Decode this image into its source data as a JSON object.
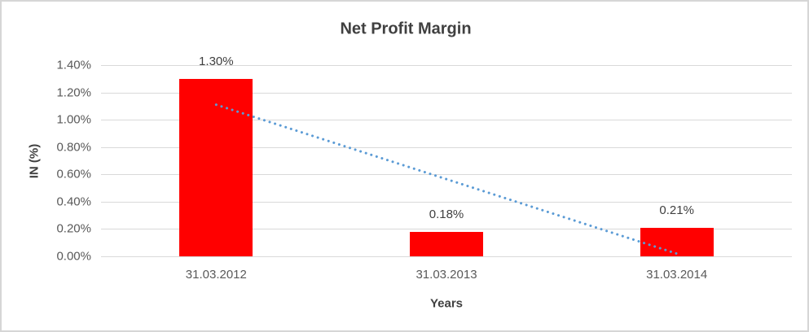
{
  "chart_data": {
    "type": "bar",
    "title": "Net Profit Margin",
    "xlabel": "Years",
    "ylabel": "IN (%)",
    "categories": [
      "31.03.2012",
      "31.03.2013",
      "31.03.2014"
    ],
    "series": [
      {
        "name": "Net Profit Margin",
        "values": [
          1.3,
          0.18,
          0.21
        ]
      }
    ],
    "data_labels": [
      "1.30%",
      "0.18%",
      "0.21%"
    ],
    "y_ticks": [
      "1.40%",
      "1.20%",
      "1.00%",
      "0.80%",
      "0.60%",
      "0.40%",
      "0.20%",
      "0.00%"
    ],
    "ylim": [
      0,
      1.4
    ],
    "y_tick_step": 0.2,
    "grid": true,
    "legend": "none",
    "bar_color": "#ff0000",
    "gridline_color": "#d9d9d9",
    "trendline": {
      "type": "linear",
      "style": "dotted",
      "color": "#5b9bd5",
      "start_category_index": 0,
      "end_category_index": 2,
      "start_value": 1.11,
      "end_value": 0.02
    }
  }
}
